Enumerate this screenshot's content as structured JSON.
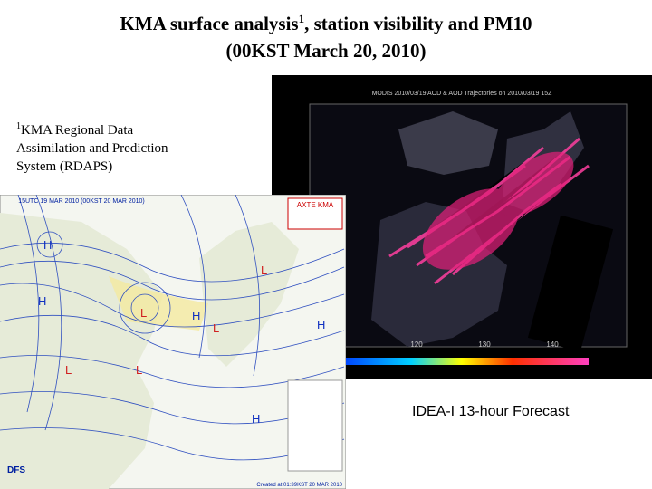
{
  "title": {
    "line1_start": "KMA surface analysis",
    "line1_sup": "1",
    "line1_end": ", station visibility and PM10",
    "line2": "(00KST March 20, 2010)"
  },
  "footnote": {
    "sup": "1",
    "lines": [
      "KMA Regional Data",
      "Assimilation and Prediction",
      "System (RDAPS)"
    ]
  },
  "left_map": {
    "header": "15UTC 19 MAR 2010 (00KST 20 MAR 2010)",
    "logo": "AXTE KMA",
    "footer": "DFS",
    "created": "Created at 01:39KST 20 MAR 2010",
    "systems": [
      "H",
      "H",
      "L",
      "L",
      "H",
      "L",
      "H",
      "L",
      "H",
      "L"
    ]
  },
  "right_image": {
    "header": "MODIS 2010/03/19 AOD & AOD Trajectories on 2010/03/19 15Z",
    "lon_labels": [
      "120",
      "130",
      "140"
    ],
    "caption": "IDEA-I 13-hour Forecast"
  }
}
